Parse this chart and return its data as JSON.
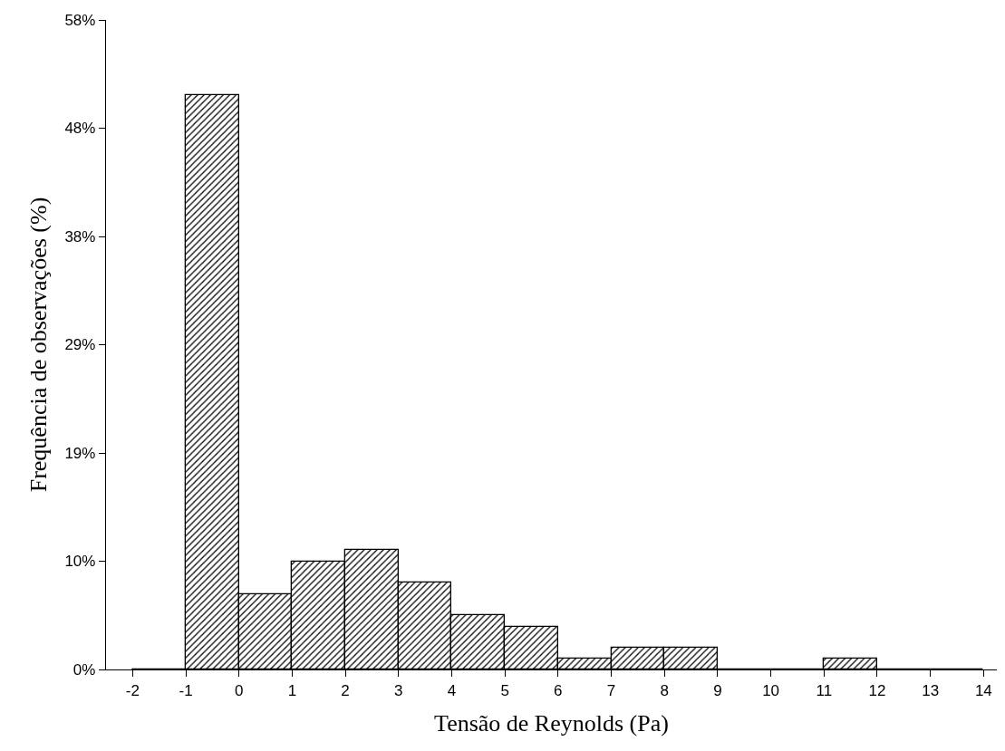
{
  "chart_data": {
    "type": "histogram",
    "xlabel": "Tensão de Reynolds (Pa)",
    "ylabel": "Frequência de observações (%)",
    "bins": [
      -2,
      -1,
      0,
      1,
      2,
      3,
      4,
      5,
      6,
      7,
      8,
      9,
      10,
      11,
      12,
      13,
      14
    ],
    "values": [
      0,
      51,
      6.7,
      9.6,
      10.6,
      7.7,
      4.8,
      3.8,
      1,
      1.9,
      1.9,
      0,
      0,
      1,
      0,
      0
    ],
    "color": "#000000",
    "xlim": [
      -2.5,
      14.25
    ],
    "xticks": [
      -2,
      -1,
      0,
      1,
      2,
      3,
      4,
      5,
      6,
      7,
      8,
      9,
      10,
      11,
      12,
      13,
      14
    ],
    "ylim": [
      0,
      57.69
    ],
    "yticks": [
      {
        "value": 0,
        "label": "0%"
      },
      {
        "value": 9.62,
        "label": "10%"
      },
      {
        "value": 19.23,
        "label": "19%"
      },
      {
        "value": 28.85,
        "label": "29%"
      },
      {
        "value": 38.46,
        "label": "38%"
      },
      {
        "value": 48.08,
        "label": "48%"
      },
      {
        "value": 57.69,
        "label": "58%"
      }
    ],
    "grid": false,
    "legend": false
  }
}
